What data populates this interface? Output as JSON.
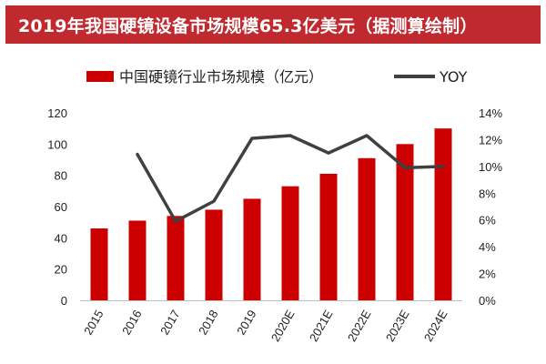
{
  "title": "2019年我国硬镜设备市场规模65.3亿美元（据测算绘制）",
  "colors": {
    "title_bg": "#c0292e",
    "bar": "#cc0000",
    "line": "#404040",
    "axis": "#bfbfbf",
    "text": "#222222"
  },
  "chart_data": {
    "type": "bar",
    "categories": [
      "2015",
      "2016",
      "2017",
      "2018",
      "2019",
      "2020E",
      "2021E",
      "2022E",
      "2023E",
      "2024E"
    ],
    "series": [
      {
        "name": "中国硬镜行业市场规模（亿元）",
        "type": "bar",
        "axis": "left",
        "values": [
          46,
          51,
          54,
          58,
          65,
          73,
          81,
          91,
          100,
          110
        ]
      },
      {
        "name": "YOY",
        "type": "line",
        "axis": "right",
        "values": [
          null,
          10.9,
          5.9,
          7.4,
          12.1,
          12.3,
          11.0,
          12.3,
          9.9,
          10.0
        ]
      }
    ],
    "y_left": {
      "ylim": [
        0,
        120
      ],
      "ticks": [
        "0",
        "20",
        "40",
        "60",
        "80",
        "100",
        "120"
      ]
    },
    "y_right": {
      "ylim": [
        0,
        14
      ],
      "ticks": [
        "0%",
        "2%",
        "4%",
        "6%",
        "8%",
        "10%",
        "12%",
        "14%"
      ]
    },
    "legend": "top",
    "grid": false
  }
}
